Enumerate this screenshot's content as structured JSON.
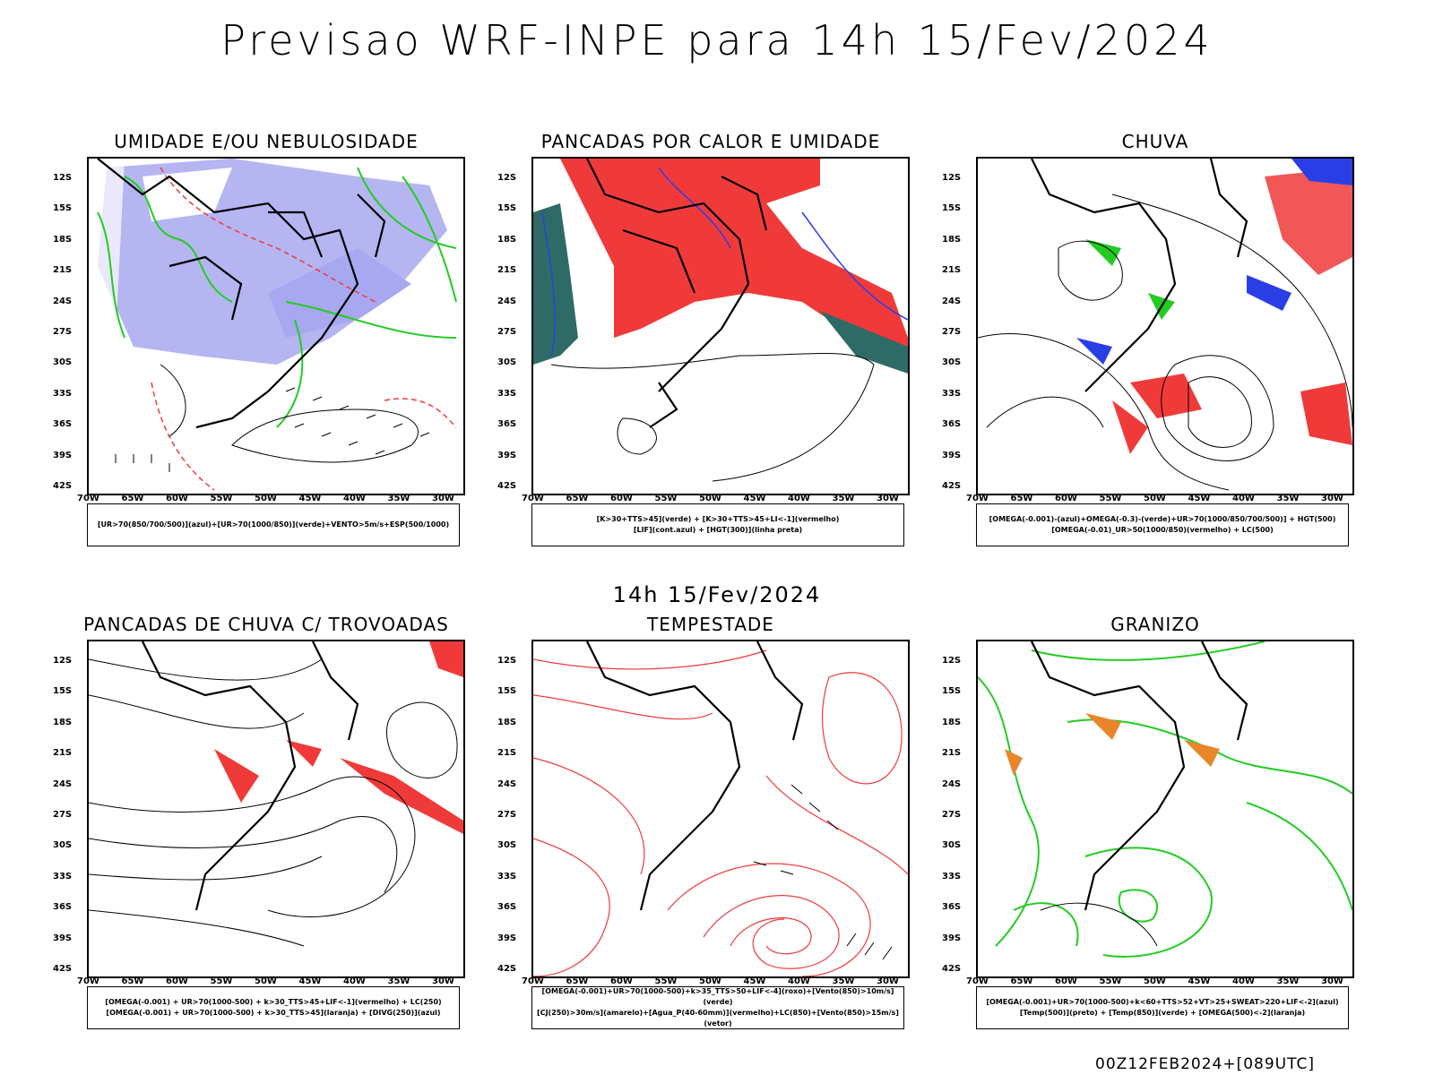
{
  "header": {
    "title": "Previsao WRF-INPE  para 14h 15/Fev/2024"
  },
  "middle": {
    "title": "14h 15/Fev/2024"
  },
  "footer": {
    "run": "00Z12FEB2024+[089UTC]"
  },
  "axes": {
    "lat_labels": [
      "12S",
      "15S",
      "18S",
      "21S",
      "24S",
      "27S",
      "30S",
      "33S",
      "36S",
      "39S",
      "42S"
    ],
    "lon_labels": [
      "70W",
      "65W",
      "60W",
      "55W",
      "50W",
      "45W",
      "40W",
      "35W",
      "30W"
    ]
  },
  "panels": [
    {
      "title": "UMIDADE E/OU NEBULOSIDADE",
      "legend": [
        "[UR>70(850/700/500)](azul)+[UR>70(1000/850)](verde)+VENTO>5m/s+ESP(500/1000)"
      ]
    },
    {
      "title": "PANCADAS POR CALOR E UMIDADE",
      "legend": [
        "[K>30+TTS>45](verde) + [K>30+TTS>45+LI<-1](vermelho)",
        "[LIF](cont.azul) + [HGT(300)](linha preta)"
      ]
    },
    {
      "title": "CHUVA",
      "legend": [
        "[OMEGA(-0.001)-(azul)+OMEGA(-0.3)-(verde)+UR>70(1000/850/700/500)] + HGT(500)",
        "[OMEGA(-0.01)_UR>50(1000/850)(vermelho) + LC(500)"
      ]
    },
    {
      "title": "PANCADAS DE CHUVA C/ TROVOADAS",
      "legend": [
        "[OMEGA(-0.001) + UR>70(1000-500) + k>30_TTS>45+LIF<-1](vermelho) + LC(250)",
        "[OMEGA(-0.001) + UR>70(1000-500) + k>30_TTS>45](laranja) + [DIVG(250)](azul)"
      ]
    },
    {
      "title": "TEMPESTADE",
      "legend": [
        "[OMEGA(-0.001)+UR>70(1000-500)+k>35_TTS>50+LIF<-4](roxo)+[Vento(850)>10m/s](verde)",
        "[CJ(250)>30m/s](amarelo)+[Agua_P(40-60mm)](vermelho)+LC(850)+[Vento(850)>15m/s](vetor)"
      ]
    },
    {
      "title": "GRANIZO",
      "legend": [
        "[OMEGA(-0.001)+UR>70(1000-500)+k<60+TTS>52+VT>25+SWEAT>220+LIF<-2](azul)",
        "[Temp(500)](preto) + [Temp(850)](verde) + [OMEGA(500)<-2](laranja)"
      ]
    }
  ],
  "colors": {
    "blue": "#2a3ee6",
    "lavender": "#a8a8f0",
    "red": "#f03a3a",
    "green": "#22cc22",
    "teal": "#2e6b66",
    "orange": "#e8862a"
  }
}
